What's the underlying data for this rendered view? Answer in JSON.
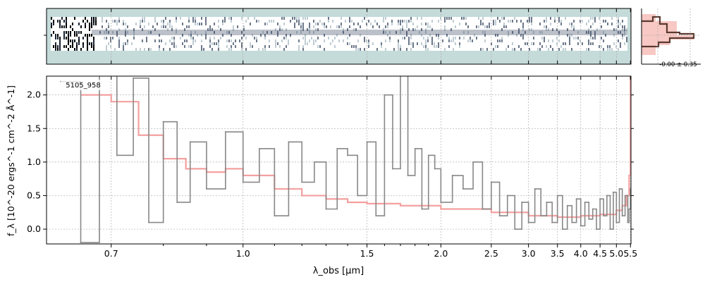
{
  "chart_data": {
    "type": "line",
    "object_id": "5105_958",
    "xlabel": "λ_obs [μm]",
    "ylabel": "f_λ [10^-20 ergs^-1 cm^-2 Å^-1]",
    "ylim": [
      -0.22,
      2.28
    ],
    "xlim": [
      0.6,
      5.52
    ],
    "x_scale": "reciprocal-sqrt",
    "x_ticks": [
      "0.7",
      "1.0",
      "1.5",
      "2.0",
      "2.5",
      "3.0",
      "3.5",
      "4.0",
      "4.5",
      "5.0",
      "5.5"
    ],
    "y_ticks": [
      "0.0",
      "0.5",
      "1.0",
      "1.5",
      "2.0"
    ],
    "grid": true,
    "inset_label": "-0.00 ± 0.35",
    "series": [
      {
        "role": "data",
        "style": "steps",
        "color": "#888888",
        "x": [
          0.62,
          0.65,
          0.68,
          0.71,
          0.74,
          0.77,
          0.8,
          0.83,
          0.86,
          0.9,
          0.95,
          1.0,
          1.05,
          1.1,
          1.15,
          1.2,
          1.25,
          1.3,
          1.35,
          1.4,
          1.45,
          1.5,
          1.55,
          1.6,
          1.65,
          1.7,
          1.75,
          1.8,
          1.85,
          1.9,
          1.95,
          2.0,
          2.1,
          2.2,
          2.3,
          2.4,
          2.5,
          2.6,
          2.7,
          2.8,
          2.9,
          3.0,
          3.1,
          3.2,
          3.3,
          3.4,
          3.5,
          3.6,
          3.7,
          3.8,
          3.9,
          4.0,
          4.1,
          4.2,
          4.3,
          4.4,
          4.5,
          4.6,
          4.7,
          4.8,
          4.9,
          5.0,
          5.1,
          5.2,
          5.3,
          5.4,
          5.45,
          5.5
        ],
        "y": [
          2.2,
          -0.2,
          2.3,
          1.1,
          2.25,
          0.1,
          1.6,
          0.4,
          1.3,
          0.6,
          1.45,
          0.7,
          1.2,
          0.2,
          1.3,
          0.7,
          1.0,
          0.3,
          1.2,
          1.1,
          0.5,
          1.3,
          0.2,
          2.0,
          0.9,
          2.3,
          0.8,
          1.2,
          0.3,
          1.1,
          0.9,
          0.4,
          0.8,
          0.6,
          1.0,
          0.3,
          0.7,
          0.2,
          0.5,
          0.0,
          0.4,
          0.1,
          0.6,
          0.2,
          0.4,
          0.1,
          0.5,
          0.0,
          0.35,
          0.1,
          0.45,
          0.05,
          0.4,
          0.15,
          0.3,
          0.0,
          0.45,
          0.2,
          0.5,
          0.0,
          0.55,
          0.1,
          0.6,
          0.2,
          0.5,
          0.1,
          0.3,
          0.6
        ]
      },
      {
        "role": "model",
        "style": "steps",
        "color": "#f4a0a0",
        "x": [
          0.65,
          0.7,
          0.75,
          0.8,
          0.85,
          0.9,
          0.95,
          1.0,
          1.1,
          1.2,
          1.3,
          1.4,
          1.5,
          1.7,
          2.0,
          2.5,
          3.0,
          3.5,
          4.0,
          4.5,
          5.0,
          5.2,
          5.35,
          5.45,
          5.5
        ],
        "y": [
          2.0,
          1.9,
          1.4,
          1.05,
          0.9,
          0.85,
          0.9,
          0.8,
          0.6,
          0.5,
          0.45,
          0.4,
          0.38,
          0.35,
          0.3,
          0.25,
          0.2,
          0.18,
          0.2,
          0.22,
          0.28,
          0.35,
          0.5,
          0.8,
          2.3
        ]
      }
    ]
  }
}
